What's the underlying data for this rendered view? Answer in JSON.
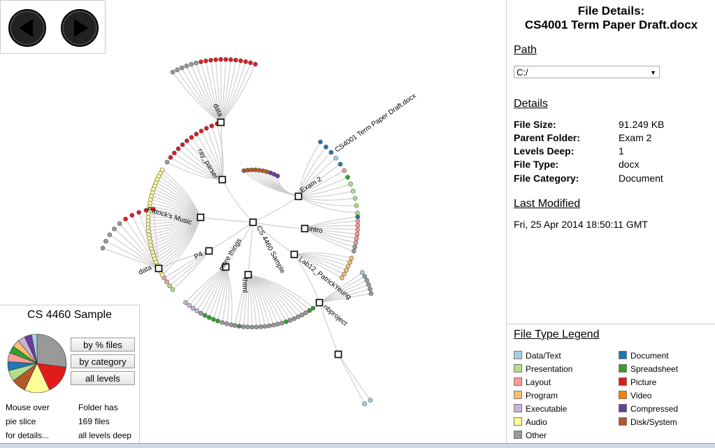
{
  "nav": {
    "back_icon": "back-arrow-icon",
    "forward_icon": "forward-arrow-icon"
  },
  "tree": {
    "root": "CS 4460 Sample",
    "nodes": [
      "Exam 2",
      "intro",
      "Lab12_PatrickYeung",
      "nbproject",
      "lhtml",
      "more things",
      "P4",
      "data",
      "Patrick's Music",
      "ray_parser",
      "data"
    ],
    "selected_file": "CS4001 Term Paper Draft.docx"
  },
  "details": {
    "title_line1": "File Details:",
    "title_line2": "CS4001 Term Paper Draft.docx",
    "path_heading": "Path",
    "path_value": "C:/",
    "details_heading": "Details",
    "rows": [
      {
        "key": "File Size:",
        "value": "91.249 KB"
      },
      {
        "key": "Parent Folder:",
        "value": "Exam 2"
      },
      {
        "key": "Levels Deep:",
        "value": "1"
      },
      {
        "key": "File Type:",
        "value": "docx"
      },
      {
        "key": "File Category:",
        "value": "Document"
      }
    ],
    "modified_heading": "Last Modified",
    "modified_value": "Fri, 25 Apr 2014 18:50:11 GMT"
  },
  "legend": {
    "title": "File Type Legend",
    "items": [
      {
        "label": "Data/Text",
        "color": "#a6cee3"
      },
      {
        "label": "Document",
        "color": "#1f78b4"
      },
      {
        "label": "Presentation",
        "color": "#b2df8a"
      },
      {
        "label": "Spreadsheet",
        "color": "#33a02c"
      },
      {
        "label": "Layout",
        "color": "#fb9a99"
      },
      {
        "label": "Picture",
        "color": "#e31a1c"
      },
      {
        "label": "Program",
        "color": "#fdbf6f"
      },
      {
        "label": "Video",
        "color": "#ff7f00"
      },
      {
        "label": "Executable",
        "color": "#cab2d6"
      },
      {
        "label": "Compressed",
        "color": "#6a3d9a"
      },
      {
        "label": "Audio",
        "color": "#ffff99"
      },
      {
        "label": "Disk/System",
        "color": "#b15928"
      },
      {
        "label": "Other",
        "color": "#999999"
      }
    ]
  },
  "summary": {
    "title": "CS 4460 Sample",
    "btn_percent": "by % files",
    "btn_category": "by category",
    "btn_levels": "all levels",
    "hint1": "Mouse over",
    "hint2": "pie slice",
    "hint3": "for details...",
    "info1": "Folder has",
    "info2": "169 files",
    "info3": "all levels deep",
    "pie": [
      {
        "category": "Other",
        "value": 27,
        "color": "#999999"
      },
      {
        "category": "Picture",
        "value": 16,
        "color": "#e31a1c"
      },
      {
        "category": "Audio",
        "value": 14,
        "color": "#ffff99"
      },
      {
        "category": "Disk/System",
        "value": 8,
        "color": "#b15928"
      },
      {
        "category": "Presentation",
        "value": 6,
        "color": "#b2df8a"
      },
      {
        "category": "Document",
        "value": 5,
        "color": "#1f78b4"
      },
      {
        "category": "Layout",
        "value": 5,
        "color": "#fb9a99"
      },
      {
        "category": "Spreadsheet",
        "value": 4,
        "color": "#33a02c"
      },
      {
        "category": "Program",
        "value": 4,
        "color": "#fdbf6f"
      },
      {
        "category": "Executable",
        "value": 4,
        "color": "#cab2d6"
      },
      {
        "category": "Compressed",
        "value": 4,
        "color": "#6a3d9a"
      },
      {
        "category": "Data/Text",
        "value": 3,
        "color": "#a6cee3"
      }
    ]
  }
}
